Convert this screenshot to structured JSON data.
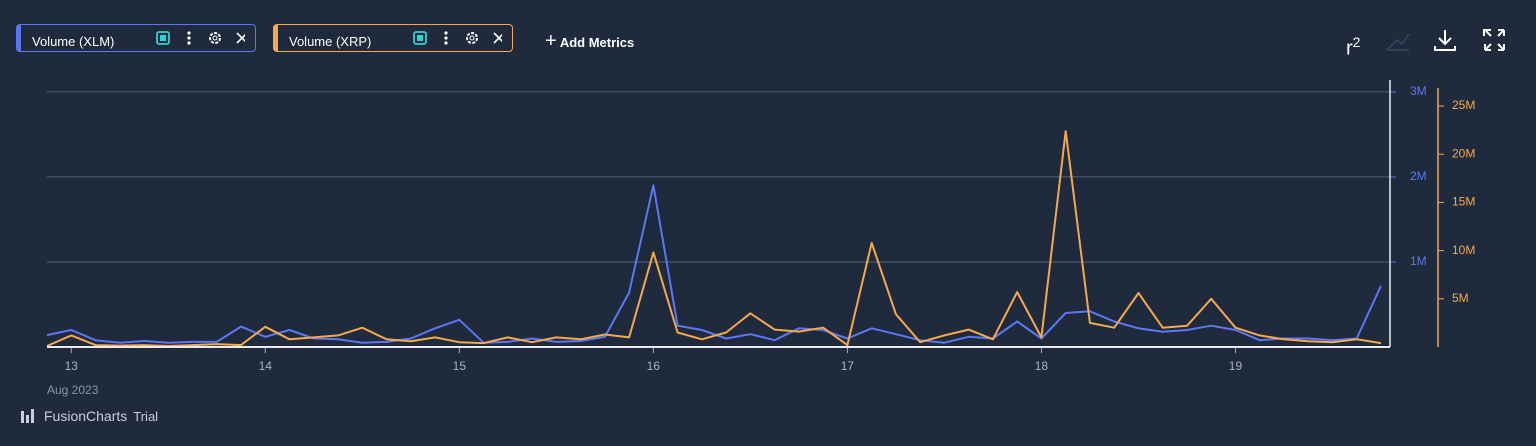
{
  "ui": {
    "add_metrics": "Add Metrics",
    "r_squared": {
      "base": "r",
      "sup": "2"
    },
    "brand": {
      "name": "FusionCharts",
      "tag": "Trial"
    }
  },
  "chart_data": {
    "type": "line",
    "x_caption": "Aug 2023",
    "x": [
      12.875,
      13,
      13.125,
      13.25,
      13.375,
      13.5,
      13.625,
      13.75,
      13.875,
      14,
      14.125,
      14.25,
      14.375,
      14.5,
      14.625,
      14.75,
      14.875,
      15,
      15.125,
      15.25,
      15.375,
      15.5,
      15.625,
      15.75,
      15.875,
      16,
      16.125,
      16.25,
      16.375,
      16.5,
      16.625,
      16.75,
      16.875,
      17,
      17.125,
      17.25,
      17.375,
      17.5,
      17.625,
      17.75,
      17.875,
      18,
      18.125,
      18.25,
      18.375,
      18.5,
      18.625,
      18.75,
      18.875,
      19,
      19.125,
      19.25,
      19.375,
      19.5,
      19.625,
      19.75
    ],
    "xlim": [
      12.875,
      19.75
    ],
    "xticks": [
      13,
      14,
      15,
      16,
      17,
      18,
      19
    ],
    "ylim": [
      0,
      3140000
    ],
    "yticks": [
      {
        "value": 1000000,
        "label": "1M"
      },
      {
        "value": 2000000,
        "label": "2M"
      },
      {
        "value": 3000000,
        "label": "3M"
      }
    ],
    "y2lim": [
      0,
      27700000
    ],
    "y2ticks": [
      {
        "value": 5000000,
        "label": "5M"
      },
      {
        "value": 10000000,
        "label": "10M"
      },
      {
        "value": 15000000,
        "label": "15M"
      },
      {
        "value": 20000000,
        "label": "20M"
      },
      {
        "value": 25000000,
        "label": "25M"
      }
    ],
    "grid": true,
    "series": [
      {
        "name": "Volume (XLM)",
        "color": "#5a78f5",
        "values": [
          140000,
          200000,
          80000,
          50000,
          70000,
          50000,
          60000,
          60000,
          240000,
          120000,
          200000,
          100000,
          90000,
          50000,
          60000,
          100000,
          220000,
          320000,
          50000,
          60000,
          100000,
          60000,
          70000,
          120000,
          640000,
          1900000,
          250000,
          200000,
          100000,
          150000,
          80000,
          220000,
          200000,
          100000,
          220000,
          150000,
          80000,
          50000,
          120000,
          100000,
          300000,
          100000,
          400000,
          420000,
          300000,
          220000,
          180000,
          200000,
          250000,
          200000,
          80000,
          100000,
          100000,
          80000,
          100000,
          720000
        ]
      },
      {
        "name": "Volume (XRP)",
        "color": "#f5a94c",
        "axis": "y2",
        "values": [
          100000,
          1200000,
          200000,
          150000,
          200000,
          100000,
          200000,
          300000,
          200000,
          2100000,
          800000,
          1000000,
          1200000,
          2000000,
          800000,
          600000,
          1000000,
          500000,
          400000,
          1000000,
          500000,
          1000000,
          800000,
          1300000,
          1000000,
          9800000,
          1500000,
          800000,
          1500000,
          3500000,
          1800000,
          1600000,
          2000000,
          200000,
          10800000,
          3400000,
          500000,
          1200000,
          1800000,
          800000,
          5700000,
          1000000,
          22400000,
          2500000,
          2000000,
          5600000,
          2000000,
          2200000,
          5000000,
          2000000,
          1200000,
          800000,
          600000,
          500000,
          800000,
          400000
        ]
      }
    ]
  }
}
